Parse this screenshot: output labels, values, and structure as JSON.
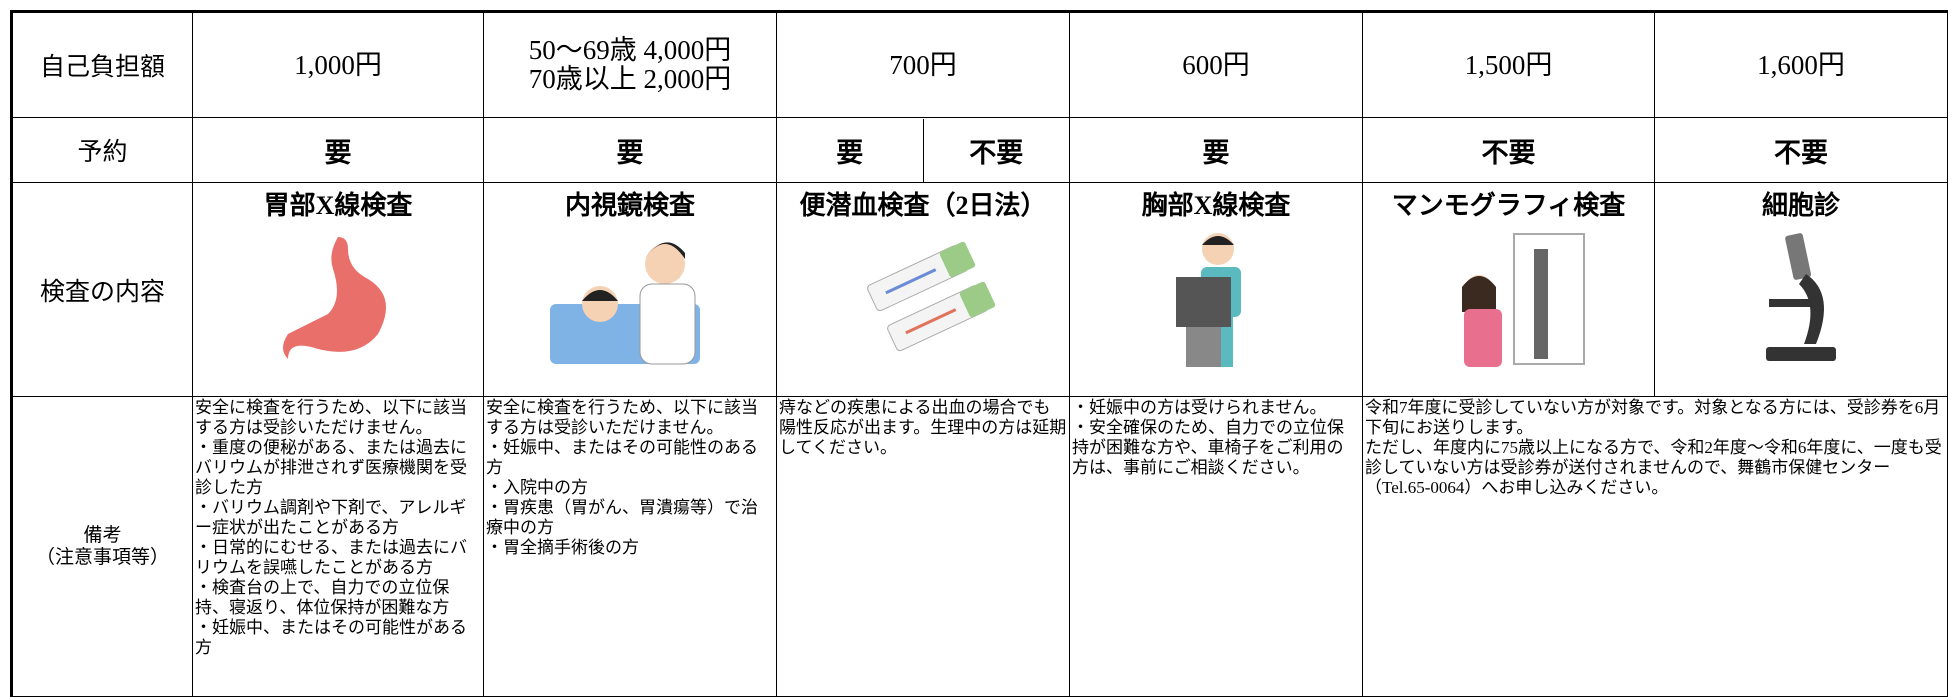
{
  "table": {
    "rows": [
      {
        "label": "自己負担額",
        "cells": [
          "1,000円",
          [
            "50～69歳 4,000円",
            "70歳以上 2,000円"
          ],
          "700円",
          "600円",
          "1,500円",
          "1,600円"
        ]
      },
      {
        "label": "予約",
        "cells": [
          "要",
          "要",
          [
            "要",
            "不要"
          ],
          "要",
          "不要",
          "不要"
        ]
      },
      {
        "label": "検査の内容",
        "cells": [
          "胃部X線検査",
          "内視鏡検査",
          "便潜血検査（2日法）",
          "胸部X線検査",
          "マンモグラフィ検査",
          "細胞診"
        ]
      },
      {
        "label": [
          "備考",
          "（注意事項等）"
        ],
        "cells": [
          [
            "安全に検査を行うため、以下に該当する方は受診いただけません。",
            "・重度の便秘がある、または過去にバリウムが排泄されず医療機関を受診した方",
            "・バリウム調剤や下剤で、アレルギー症状が出たことがある方",
            "・日常的にむせる、または過去にバリウムを誤嚥したことがある方",
            "・検査台の上で、自力での立位保持、寝返り、体位保持が困難な方",
            "・妊娠中、またはその可能性がある方"
          ],
          [
            "安全に検査を行うため、以下に該当する方は受診いただけません。",
            "・妊娠中、またはその可能性のある方",
            "・入院中の方",
            "・胃疾患（胃がん、胃潰瘍等）で治療中の方",
            "・胃全摘手術後の方"
          ],
          [
            "痔などの疾患による出血の場合でも陽性反応が出ます。生理中の方は延期してください。"
          ],
          [
            "・妊娠中の方は受けられません。",
            "・安全確保のため、自力での立位保持が困難な方や、車椅子をご利用の方は、事前にご相談ください。"
          ],
          [
            "令和7年度に受診していない方が対象です。対象となる方には、受診券を6月下旬にお送りします。",
            "ただし、年度内に75歳以上になる方で、令和2年度～令和6年度に、一度も受診していない方は受診券が送付されませんので、舞鶴市保健センター（Tel.65-0064）へお申し込みください。"
          ]
        ]
      }
    ]
  }
}
